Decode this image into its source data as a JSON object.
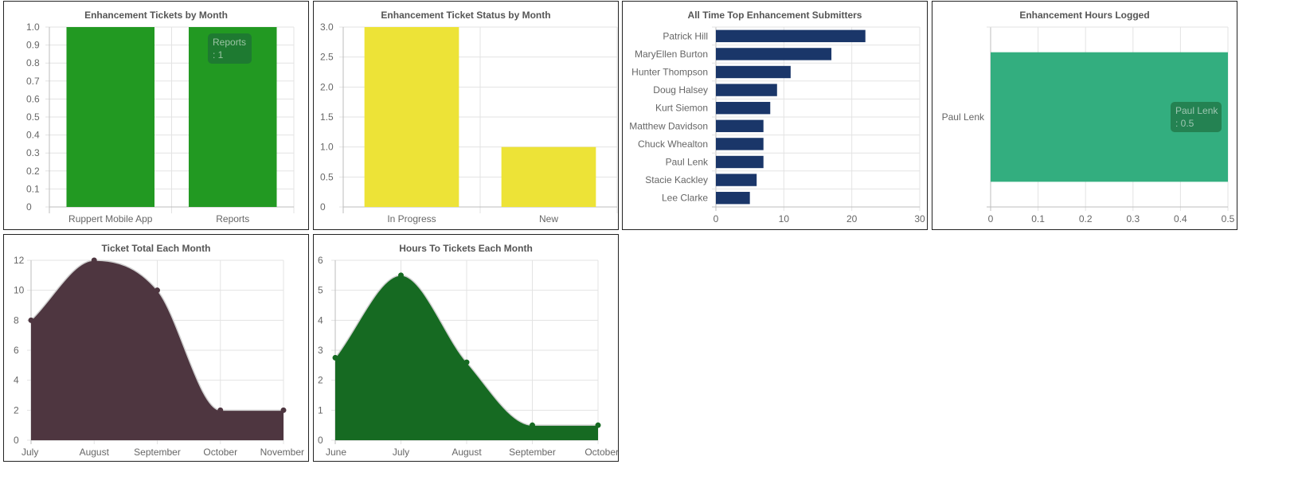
{
  "chart_data": [
    {
      "id": "c1",
      "type": "bar",
      "title": "Enhancement Tickets by Month",
      "categories": [
        "Ruppert Mobile App",
        "Reports"
      ],
      "values": [
        1,
        1
      ],
      "ylim": [
        0,
        1
      ],
      "yticks": [
        "1.0",
        "0.9",
        "0.8",
        "0.7",
        "0.6",
        "0.5",
        "0.4",
        "0.3",
        "0.2",
        "0.1",
        "0"
      ],
      "color": "#229922",
      "grid": true,
      "tooltip": {
        "title": "Reports",
        "value": ": 1"
      }
    },
    {
      "id": "c2",
      "type": "bar",
      "title": "Enhancement Ticket Status by Month",
      "categories": [
        "In Progress",
        "New"
      ],
      "values": [
        3,
        1
      ],
      "ylim": [
        0,
        3
      ],
      "yticks": [
        "3.0",
        "2.5",
        "2.0",
        "1.5",
        "1.0",
        "0.5",
        "0"
      ],
      "color": "#ede337",
      "grid": true
    },
    {
      "id": "c3",
      "type": "bar",
      "orientation": "horizontal",
      "title": "All Time Top Enhancement Submitters",
      "categories": [
        "Patrick Hill",
        "MaryEllen Burton",
        "Hunter Thompson",
        "Doug Halsey",
        "Kurt Siemon",
        "Matthew Davidson",
        "Chuck Whealton",
        "Paul Lenk",
        "Stacie Kackley",
        "Lee Clarke"
      ],
      "values": [
        22,
        17,
        11,
        9,
        8,
        7,
        7,
        7,
        6,
        5
      ],
      "xlim": [
        0,
        30
      ],
      "xticks": [
        "0",
        "10",
        "20",
        "30"
      ],
      "color": "#1a3669",
      "grid": true
    },
    {
      "id": "c4",
      "type": "bar",
      "orientation": "horizontal",
      "title": "Enhancement Hours Logged",
      "categories": [
        "Paul Lenk"
      ],
      "values": [
        0.5
      ],
      "xlim": [
        0,
        0.5
      ],
      "xticks": [
        "0",
        "0.1",
        "0.2",
        "0.3",
        "0.4",
        "0.5"
      ],
      "color": "#33ae7f",
      "grid": true,
      "tooltip": {
        "title": "Paul Lenk",
        "value": ": 0.5"
      }
    },
    {
      "id": "c5",
      "type": "area",
      "title": "Ticket Total Each Month",
      "x": [
        "July",
        "August",
        "September",
        "October",
        "November"
      ],
      "values": [
        8,
        12,
        10,
        2,
        2
      ],
      "ylim": [
        0,
        12
      ],
      "yticks": [
        "12",
        "10",
        "8",
        "6",
        "4",
        "2",
        "0"
      ],
      "color": "#4e3640",
      "grid": true
    },
    {
      "id": "c6",
      "type": "area",
      "title": "Hours To Tickets Each Month",
      "x": [
        "June",
        "July",
        "August",
        "September",
        "October"
      ],
      "values": [
        2.75,
        5.5,
        2.6,
        0.5,
        0.5
      ],
      "ylim": [
        0,
        6
      ],
      "yticks": [
        "6",
        "5",
        "4",
        "3",
        "2",
        "1",
        "0"
      ],
      "color": "#166a22",
      "grid": true
    }
  ]
}
